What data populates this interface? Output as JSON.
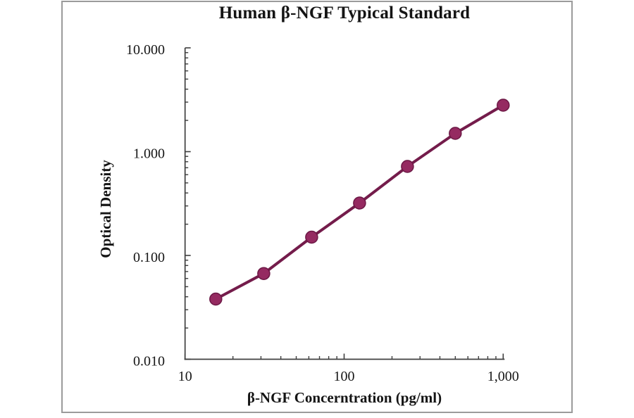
{
  "figure": {
    "frame_border_color": "#9b9b9b",
    "background_color": "#ffffff"
  },
  "chart_data": {
    "type": "line",
    "title": "Human β-NGF Typical Standard",
    "xlabel": "β-NGF Concerntration (pg/ml)",
    "ylabel": "Optical Density",
    "x_scale": "log",
    "y_scale": "log",
    "xlim": [
      10,
      1000
    ],
    "ylim": [
      0.01,
      10
    ],
    "grid": false,
    "legend": "none",
    "x_ticks": [
      {
        "value": 10,
        "label": "10"
      },
      {
        "value": 100,
        "label": "100"
      },
      {
        "value": 1000,
        "label": "1,000"
      }
    ],
    "y_ticks": [
      {
        "value": 10,
        "label": "10.000"
      },
      {
        "value": 1,
        "label": "1.000"
      },
      {
        "value": 0.1,
        "label": "0.100"
      },
      {
        "value": 0.01,
        "label": "0.010"
      }
    ],
    "series": [
      {
        "name": "Human β-NGF Typical Standard",
        "x": [
          15.6,
          31.25,
          62.5,
          125,
          250,
          500,
          1000
        ],
        "y": [
          0.038,
          0.067,
          0.15,
          0.32,
          0.72,
          1.5,
          2.8
        ]
      }
    ],
    "colors": {
      "line": "#741c4b",
      "marker_fill": "#952a61",
      "marker_stroke": "#6c1845",
      "axis": "#3f3f3f",
      "text": "#161616"
    }
  }
}
